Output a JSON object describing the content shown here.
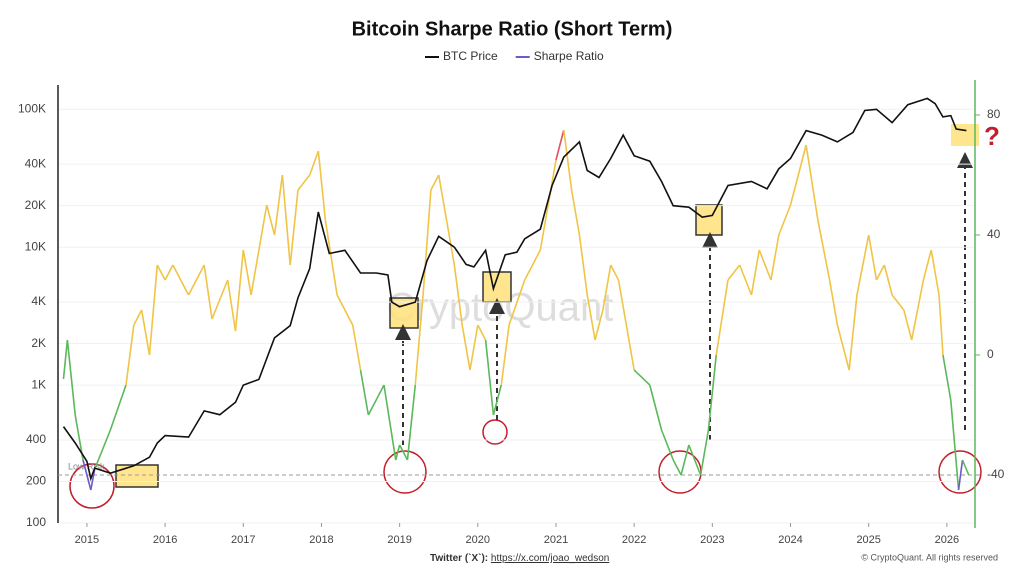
{
  "chart_data": {
    "type": "line",
    "title": "Bitcoin Sharpe Ratio (Short Term)",
    "xlim": [
      2014.63,
      2026.36
    ],
    "xticks": [
      2015,
      2016,
      2017,
      2018,
      2019,
      2020,
      2021,
      2022,
      2023,
      2024,
      2025,
      2026
    ],
    "ylog": true,
    "ylim": [
      100,
      150000
    ],
    "yticks": [
      100,
      200,
      400,
      {
        "value": 1000,
        "label": "1K"
      },
      {
        "value": 2000,
        "label": "2K"
      },
      {
        "value": 4000,
        "label": "4K"
      },
      {
        "value": 10000,
        "label": "10K"
      },
      {
        "value": 20000,
        "label": "20K"
      },
      {
        "value": 40000,
        "label": "40K"
      },
      {
        "value": 100000,
        "label": "100K"
      }
    ],
    "y2lim": [
      -56,
      90
    ],
    "y2ticks": [
      -40,
      0,
      40,
      80
    ],
    "grid": true,
    "series": [
      {
        "name": "BTC Price",
        "color": "#111111",
        "x": [
          2014.7,
          2014.85,
          2015.0,
          2015.05,
          2015.1,
          2015.3,
          2015.6,
          2015.8,
          2015.9,
          2016.0,
          2016.3,
          2016.5,
          2016.7,
          2016.9,
          2017.0,
          2017.2,
          2017.4,
          2017.6,
          2017.7,
          2017.85,
          2017.96,
          2018.1,
          2018.3,
          2018.5,
          2018.7,
          2018.85,
          2018.9,
          2019.0,
          2019.2,
          2019.35,
          2019.5,
          2019.7,
          2019.85,
          2019.95,
          2020.1,
          2020.2,
          2020.35,
          2020.5,
          2020.6,
          2020.8,
          2020.95,
          2021.1,
          2021.3,
          2021.4,
          2021.55,
          2021.7,
          2021.86,
          2022.0,
          2022.2,
          2022.35,
          2022.5,
          2022.7,
          2022.87,
          2023.0,
          2023.2,
          2023.5,
          2023.7,
          2023.85,
          2024.0,
          2024.2,
          2024.4,
          2024.6,
          2024.8,
          2024.95,
          2025.1,
          2025.3,
          2025.5,
          2025.75,
          2025.85,
          2025.95,
          2026.05,
          2026.12,
          2026.25
        ],
        "values": [
          500,
          380,
          280,
          210,
          250,
          230,
          260,
          300,
          380,
          430,
          420,
          650,
          610,
          750,
          1000,
          1100,
          2200,
          2700,
          4300,
          7000,
          18000,
          9000,
          9500,
          6500,
          6500,
          6300,
          4000,
          3700,
          4000,
          8000,
          12000,
          10000,
          7500,
          7200,
          9500,
          5000,
          8800,
          9200,
          11500,
          13500,
          28000,
          45000,
          58000,
          36000,
          32000,
          44000,
          65000,
          46000,
          42000,
          30000,
          20000,
          19500,
          16500,
          17000,
          28000,
          30000,
          26500,
          37000,
          44000,
          70000,
          65000,
          58000,
          68000,
          98000,
          100000,
          80000,
          108000,
          120000,
          110000,
          88000,
          90000,
          72000,
          70000
        ]
      },
      {
        "name": "Sharpe Ratio",
        "color": "#6a5acd",
        "axis": "y2",
        "zone_thresholds": [
          -38,
          0,
          66
        ],
        "zone_colors": [
          "#6a5acd",
          "#5cb85c",
          "#f0c445",
          "#e0535f"
        ],
        "x": [
          2014.7,
          2014.75,
          2014.85,
          2014.95,
          2015.05,
          2015.1,
          2015.3,
          2015.5,
          2015.6,
          2015.7,
          2015.8,
          2015.9,
          2016.0,
          2016.1,
          2016.3,
          2016.5,
          2016.6,
          2016.8,
          2016.9,
          2017.0,
          2017.1,
          2017.3,
          2017.4,
          2017.5,
          2017.6,
          2017.7,
          2017.85,
          2017.96,
          2018.05,
          2018.2,
          2018.4,
          2018.5,
          2018.6,
          2018.8,
          2018.95,
          2019.0,
          2019.1,
          2019.2,
          2019.3,
          2019.4,
          2019.5,
          2019.7,
          2019.8,
          2019.9,
          2020.0,
          2020.1,
          2020.2,
          2020.3,
          2020.4,
          2020.6,
          2020.8,
          2020.9,
          2021.0,
          2021.1,
          2021.2,
          2021.3,
          2021.4,
          2021.5,
          2021.6,
          2021.7,
          2021.8,
          2021.9,
          2022.0,
          2022.2,
          2022.35,
          2022.5,
          2022.6,
          2022.7,
          2022.85,
          2022.95,
          2023.05,
          2023.2,
          2023.35,
          2023.5,
          2023.6,
          2023.75,
          2023.85,
          2024.0,
          2024.2,
          2024.35,
          2024.5,
          2024.6,
          2024.75,
          2024.85,
          2025.0,
          2025.1,
          2025.2,
          2025.3,
          2025.45,
          2025.55,
          2025.7,
          2025.8,
          2025.9,
          2025.95,
          2026.05,
          2026.1,
          2026.15,
          2026.2,
          2026.28
        ],
        "values": [
          -8,
          5,
          -20,
          -35,
          -45,
          -38,
          -25,
          -10,
          10,
          15,
          0,
          30,
          25,
          30,
          20,
          30,
          12,
          25,
          8,
          35,
          20,
          50,
          40,
          60,
          30,
          55,
          60,
          68,
          45,
          20,
          10,
          -5,
          -20,
          -10,
          -35,
          -30,
          -35,
          -10,
          20,
          55,
          60,
          30,
          10,
          -5,
          10,
          5,
          -20,
          -10,
          10,
          25,
          35,
          50,
          65,
          75,
          55,
          40,
          20,
          5,
          15,
          30,
          25,
          10,
          -5,
          -10,
          -25,
          -35,
          -40,
          -30,
          -40,
          -25,
          0,
          25,
          30,
          20,
          35,
          25,
          40,
          50,
          70,
          45,
          25,
          10,
          -5,
          20,
          40,
          25,
          30,
          20,
          15,
          5,
          25,
          35,
          20,
          0,
          -15,
          -30,
          -45,
          -35,
          -40
        ]
      }
    ],
    "reference_line": {
      "text": "Low Risk",
      "value": -40
    },
    "question_mark": "?",
    "watermark": "CryptoQuant",
    "footer_left": "Twitter (`X`): ",
    "footer_link": "https://x.com/joao_wedson",
    "footer_right": "© CryptoQuant. All rights reserved"
  }
}
